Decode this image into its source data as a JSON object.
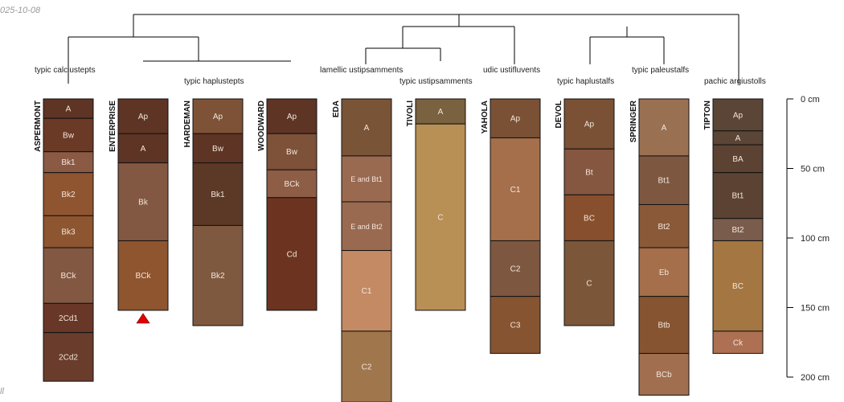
{
  "figure": {
    "date_stamp": "025-10-08",
    "bottom_left_text": "ll"
  },
  "depth_axis": {
    "ticks": [
      {
        "value": 0,
        "label": "0 cm"
      },
      {
        "value": 50,
        "label": "50 cm"
      },
      {
        "value": 100,
        "label": "100 cm"
      },
      {
        "value": 150,
        "label": "150 cm"
      },
      {
        "value": 200,
        "label": "200 cm"
      }
    ],
    "max_depth_cm": 200
  },
  "taxa_labels": [
    "typic calciustepts",
    "typic haplustepts",
    "lamellic ustipsamments",
    "typic ustipsamments",
    "udic ustifluvents",
    "typic haplustalfs",
    "typic paleustalfs",
    "pachic argiustolls"
  ],
  "profiles": [
    {
      "name": "ASPERMONT",
      "horizons": [
        {
          "name": "A",
          "top": 0,
          "bottom": 14,
          "color": "#5e3424"
        },
        {
          "name": "Bw",
          "top": 14,
          "bottom": 38,
          "color": "#6a3a26"
        },
        {
          "name": "Bk1",
          "top": 38,
          "bottom": 53,
          "color": "#8b5a44"
        },
        {
          "name": "Bk2",
          "top": 53,
          "bottom": 84,
          "color": "#8f5430"
        },
        {
          "name": "Bk3",
          "top": 84,
          "bottom": 107,
          "color": "#8d5530"
        },
        {
          "name": "BCk",
          "top": 107,
          "bottom": 147,
          "color": "#835842"
        },
        {
          "name": "2Cd1",
          "top": 147,
          "bottom": 168,
          "color": "#693727"
        },
        {
          "name": "2Cd2",
          "top": 168,
          "bottom": 203,
          "color": "#693c2c"
        }
      ]
    },
    {
      "name": "ENTERPRISE",
      "bedrock_marker": true,
      "horizons": [
        {
          "name": "Ap",
          "top": 0,
          "bottom": 25,
          "color": "#5e3424"
        },
        {
          "name": "A",
          "top": 25,
          "bottom": 46,
          "color": "#5e3424"
        },
        {
          "name": "Bk",
          "top": 46,
          "bottom": 102,
          "color": "#835842"
        },
        {
          "name": "BCk",
          "top": 102,
          "bottom": 152,
          "color": "#8f552f"
        }
      ]
    },
    {
      "name": "HARDEMAN",
      "horizons": [
        {
          "name": "Ap",
          "top": 0,
          "bottom": 25,
          "color": "#7d5236"
        },
        {
          "name": "Bw",
          "top": 25,
          "bottom": 46,
          "color": "#5e3424"
        },
        {
          "name": "Bk1",
          "top": 46,
          "bottom": 91,
          "color": "#5c3826"
        },
        {
          "name": "Bk2",
          "top": 91,
          "bottom": 163,
          "color": "#7f5840"
        }
      ]
    },
    {
      "name": "WOODWARD",
      "horizons": [
        {
          "name": "Ap",
          "top": 0,
          "bottom": 25,
          "color": "#5e3424"
        },
        {
          "name": "Bw",
          "top": 25,
          "bottom": 51,
          "color": "#7d5238"
        },
        {
          "name": "BCk",
          "top": 51,
          "bottom": 71,
          "color": "#8d5d45"
        },
        {
          "name": "Cd",
          "top": 71,
          "bottom": 152,
          "color": "#6c3420"
        }
      ]
    },
    {
      "name": "EDA",
      "horizons": [
        {
          "name": "A",
          "top": 0,
          "bottom": 41,
          "color": "#7a5437"
        },
        {
          "name": "E and Bt1",
          "top": 41,
          "bottom": 74,
          "color": "#9a6a50"
        },
        {
          "name": "E and Bt2",
          "top": 74,
          "bottom": 109,
          "color": "#9a6a50"
        },
        {
          "name": "C1",
          "top": 109,
          "bottom": 167,
          "color": "#c48a63"
        },
        {
          "name": "C2",
          "top": 167,
          "bottom": 218,
          "color": "#a0764d"
        }
      ]
    },
    {
      "name": "TIVOLI",
      "horizons": [
        {
          "name": "A",
          "top": 0,
          "bottom": 18,
          "color": "#7a613f"
        },
        {
          "name": "C",
          "top": 18,
          "bottom": 152,
          "color": "#b88f54"
        }
      ]
    },
    {
      "name": "YAHOLA",
      "horizons": [
        {
          "name": "Ap",
          "top": 0,
          "bottom": 28,
          "color": "#7a5135"
        },
        {
          "name": "C1",
          "top": 28,
          "bottom": 102,
          "color": "#a46f4a"
        },
        {
          "name": "C2",
          "top": 102,
          "bottom": 142,
          "color": "#7e5741"
        },
        {
          "name": "C3",
          "top": 142,
          "bottom": 183,
          "color": "#875432"
        }
      ]
    },
    {
      "name": "DEVOL",
      "horizons": [
        {
          "name": "Ap",
          "top": 0,
          "bottom": 36,
          "color": "#7a5135"
        },
        {
          "name": "Bt",
          "top": 36,
          "bottom": 69,
          "color": "#855640"
        },
        {
          "name": "BC",
          "top": 69,
          "bottom": 102,
          "color": "#874f2d"
        },
        {
          "name": "C",
          "top": 102,
          "bottom": 163,
          "color": "#7c5638"
        }
      ]
    },
    {
      "name": "SPRINGER",
      "horizons": [
        {
          "name": "A",
          "top": 0,
          "bottom": 41,
          "color": "#9a7052"
        },
        {
          "name": "Bt1",
          "top": 41,
          "bottom": 76,
          "color": "#7e5741"
        },
        {
          "name": "Bt2",
          "top": 76,
          "bottom": 107,
          "color": "#8a5a38"
        },
        {
          "name": "Eb",
          "top": 107,
          "bottom": 142,
          "color": "#a46f4a"
        },
        {
          "name": "Btb",
          "top": 142,
          "bottom": 183,
          "color": "#875432"
        },
        {
          "name": "BCb",
          "top": 183,
          "bottom": 213,
          "color": "#a16f50"
        }
      ]
    },
    {
      "name": "TIPTON",
      "horizons": [
        {
          "name": "Ap",
          "top": 0,
          "bottom": 23,
          "color": "#5a4536"
        },
        {
          "name": "A",
          "top": 23,
          "bottom": 33,
          "color": "#5a4536"
        },
        {
          "name": "BA",
          "top": 33,
          "bottom": 53,
          "color": "#5c4232"
        },
        {
          "name": "Bt1",
          "top": 53,
          "bottom": 86,
          "color": "#5c4232"
        },
        {
          "name": "Bt2",
          "top": 86,
          "bottom": 102,
          "color": "#7a5c4c"
        },
        {
          "name": "BC",
          "top": 102,
          "bottom": 167,
          "color": "#a47642"
        },
        {
          "name": "Ck",
          "top": 167,
          "bottom": 183,
          "color": "#ad7052"
        }
      ]
    }
  ]
}
